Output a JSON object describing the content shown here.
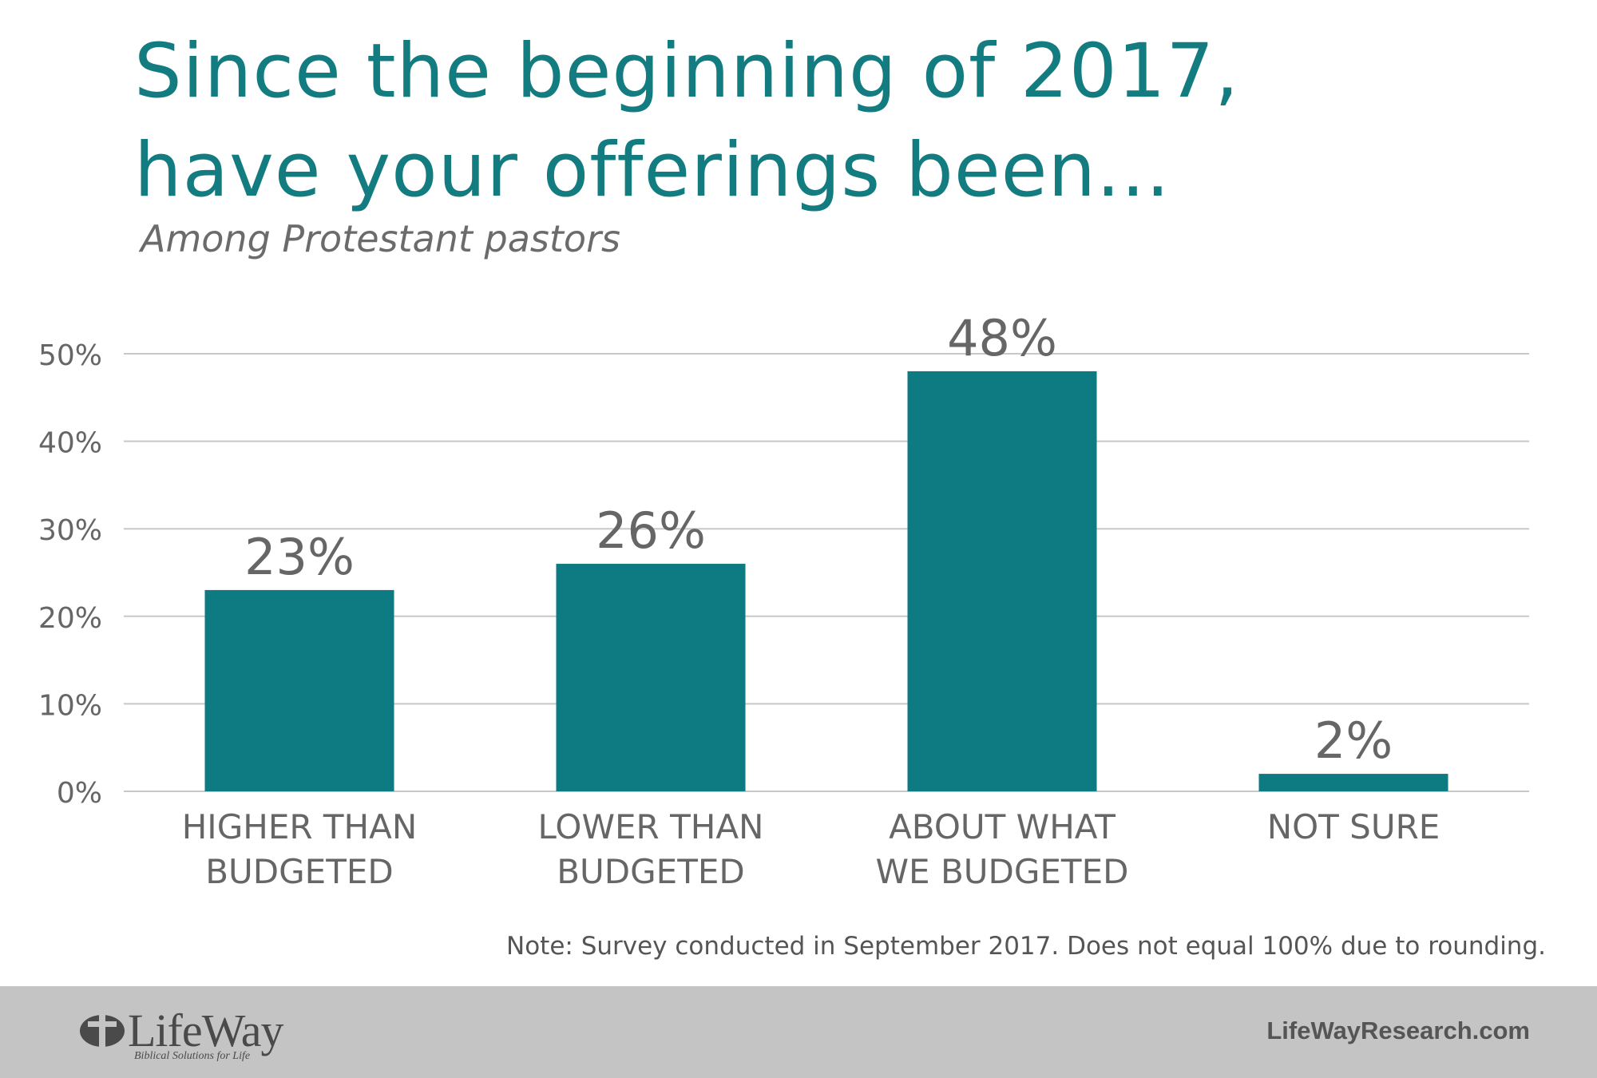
{
  "chart_data": {
    "type": "bar",
    "title": "Since the beginning of 2017, have your offerings been...",
    "title_lines": [
      "Since the beginning of 2017,",
      "have your offerings been..."
    ],
    "subtitle": "Among Protestant pastors",
    "categories": [
      [
        "HIGHER THAN",
        "BUDGETED"
      ],
      [
        "LOWER THAN",
        "BUDGETED"
      ],
      [
        "ABOUT WHAT",
        "WE BUDGETED"
      ],
      [
        "NOT SURE"
      ]
    ],
    "values": [
      23,
      26,
      48,
      2
    ],
    "value_labels": [
      "23%",
      "26%",
      "48%",
      "2%"
    ],
    "y_ticks": [
      0,
      10,
      20,
      30,
      40,
      50
    ],
    "y_tick_labels": [
      "0%",
      "10%",
      "20%",
      "30%",
      "40%",
      "50%"
    ],
    "ylim": [
      0,
      50
    ],
    "xlabel": "",
    "ylabel": "",
    "grid": true,
    "legend": "none",
    "colors": {
      "bar": "#0e7b82",
      "title": "#137c80",
      "grid": "#c8c8c8",
      "label": "#666666",
      "footer": "#c4c4c4"
    }
  },
  "note": "Note: Survey conducted in September 2017. Does not equal 100% due to rounding.",
  "footer": {
    "logo_text": "LifeWay",
    "logo_tagline": "Biblical Solutions for Life",
    "website": "LifeWayResearch.com"
  }
}
